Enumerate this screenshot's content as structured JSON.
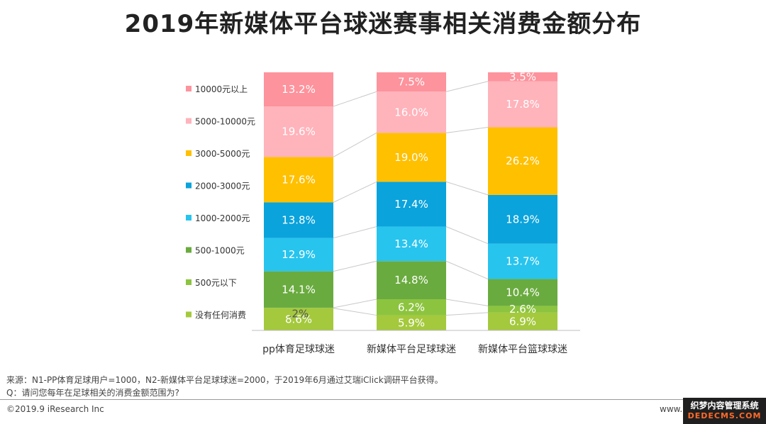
{
  "chart_data": {
    "type": "bar",
    "stacked": true,
    "normalized": true,
    "title": "2019年新媒体平台球迷赛事相关消费金额分布",
    "categories": [
      "pp体育足球球迷",
      "新媒体平台足球球迷",
      "新媒体平台篮球球迷"
    ],
    "series": [
      {
        "name": "没有任何消费",
        "color": "#a4c93d",
        "values": [
          8.6,
          5.9,
          6.9
        ],
        "labels": [
          "8.6%",
          "5.9%",
          "6.9%"
        ]
      },
      {
        "name": "500元以下",
        "color": "#8cc43f",
        "values": [
          0.2,
          6.2,
          2.6
        ],
        "labels": [
          ".2%",
          "6.2%",
          "2.6%"
        ]
      },
      {
        "name": "500-1000元",
        "color": "#6aab3f",
        "values": [
          14.1,
          14.8,
          10.4
        ],
        "labels": [
          "14.1%",
          "14.8%",
          "10.4%"
        ]
      },
      {
        "name": "1000-2000元",
        "color": "#27c4ee",
        "values": [
          12.9,
          13.4,
          13.7
        ],
        "labels": [
          "12.9%",
          "13.4%",
          "13.7%"
        ]
      },
      {
        "name": "2000-3000元",
        "color": "#0aa3dc",
        "values": [
          13.8,
          17.4,
          18.9
        ],
        "labels": [
          "13.8%",
          "17.4%",
          "18.9%"
        ]
      },
      {
        "name": "3000-5000元",
        "color": "#ffc000",
        "values": [
          17.6,
          19.0,
          26.2
        ],
        "labels": [
          "17.6%",
          "19.0%",
          "26.2%"
        ]
      },
      {
        "name": "5000-10000元",
        "color": "#ffb3bb",
        "values": [
          19.6,
          16.0,
          17.8
        ],
        "labels": [
          "19.6%",
          "16.0%",
          "17.8%"
        ]
      },
      {
        "name": "10000元以上",
        "color": "#fd939c",
        "values": [
          13.2,
          7.5,
          3.5
        ],
        "labels": [
          "13.2%",
          "7.5%",
          "3.5%"
        ]
      }
    ],
    "legend": [
      "10000元以上",
      "5000-10000元",
      "3000-5000元",
      "2000-3000元",
      "1000-2000元",
      "500-1000元",
      "500元以下",
      "没有任何消费"
    ],
    "legend_position": "left",
    "xlabel": "",
    "ylabel": "",
    "grid": false
  },
  "notes": {
    "source": "来源：N1-PP体育足球用户=1000，N2-新媒体平台足球球迷=2000，于2019年6月通过艾瑞iClick调研平台获得。",
    "question": "Q：请问您每年在足球相关的消费金额范围为?"
  },
  "footer": {
    "copyright": "©2019.9 iResearch Inc",
    "website": "www.i",
    "badge_top": "织梦内容管理系统",
    "badge_bottom": "DEDECMS.COM"
  }
}
